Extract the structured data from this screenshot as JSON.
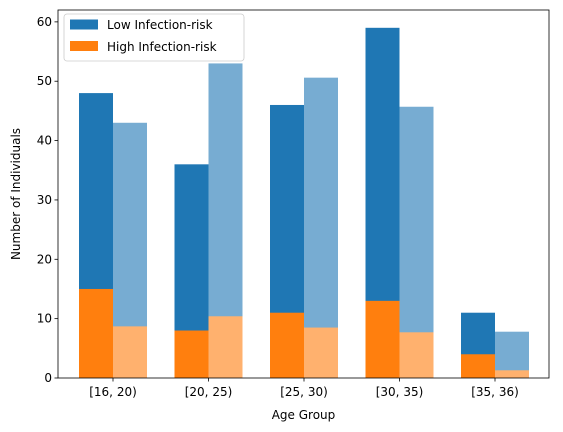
{
  "chart_data": {
    "type": "bar",
    "xlabel": "Age Group",
    "ylabel": "Number of Individuals",
    "ylim": [
      0,
      62
    ],
    "grid": false,
    "legend_placement": "top-left",
    "yticks": [
      0,
      10,
      20,
      30,
      40,
      50,
      60
    ],
    "categories": [
      "[16, 20)",
      "[20, 25)",
      "[25, 30)",
      "[30, 35)",
      "[35, 36)"
    ],
    "legend": [
      {
        "label": "Low Infection-risk",
        "color": "#1f77b4"
      },
      {
        "label": "High Infection-risk",
        "color": "#ff7f0e"
      }
    ],
    "series": [
      {
        "name": "Low Infection-risk",
        "group": "left",
        "color": "#1f77b4",
        "values": [
          48,
          36,
          46,
          59,
          11
        ]
      },
      {
        "name": "High Infection-risk",
        "group": "left",
        "color": "#ff7f0e",
        "values": [
          15,
          8,
          11,
          13,
          4
        ]
      },
      {
        "group": "right",
        "color": "#77acd2",
        "values": [
          43,
          53,
          50.6,
          45.7,
          7.8
        ]
      },
      {
        "group": "right",
        "color": "#ffb16e",
        "values": [
          8.7,
          10.4,
          8.5,
          7.7,
          1.3
        ]
      }
    ]
  }
}
